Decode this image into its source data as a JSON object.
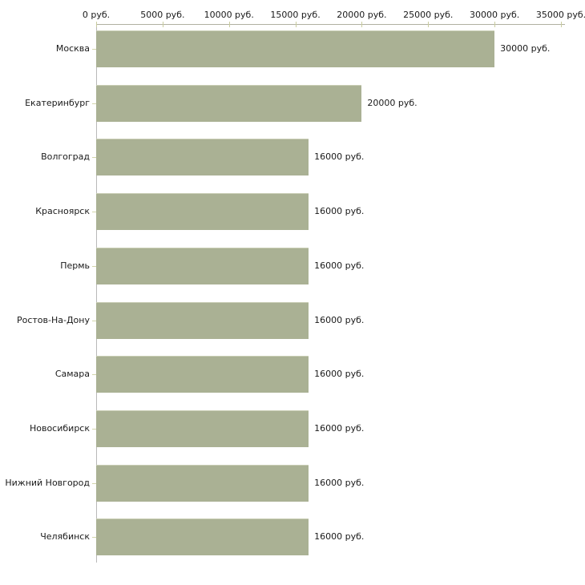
{
  "chart_data": {
    "type": "bar",
    "orientation": "horizontal",
    "title": "",
    "categories": [
      "Москва",
      "Екатеринбург",
      "Волгоград",
      "Красноярск",
      "Пермь",
      "Ростов-На-Дону",
      "Самара",
      "Новосибирск",
      "Нижний Новгород",
      "Челябинск"
    ],
    "values": [
      30000,
      20000,
      16000,
      16000,
      16000,
      16000,
      16000,
      16000,
      16000,
      16000
    ],
    "value_labels": [
      "30000 руб.",
      "20000 руб.",
      "16000 руб.",
      "16000 руб.",
      "16000 руб.",
      "16000 руб.",
      "16000 руб.",
      "16000 руб.",
      "16000 руб.",
      "16000 руб."
    ],
    "x_tick_labels": [
      "0 руб.",
      "5000 руб.",
      "10000 руб.",
      "15000 руб.",
      "20000 руб.",
      "25000 руб.",
      "30000 руб.",
      "35000 руб."
    ],
    "x_tick_values": [
      0,
      5000,
      10000,
      15000,
      20000,
      25000,
      30000,
      35000
    ],
    "xlim": [
      0,
      35000
    ],
    "xlabel": "",
    "ylabel": "",
    "grid": false,
    "legend_position": "none",
    "colors": {
      "bar": "#aab194",
      "bar_top_border": "#c9cdb4",
      "x_axis_line": "#b0b1a1",
      "x_tick_mark": "#c9cc9f",
      "y_axis_line": "#b9b9b9",
      "row_tick": "#d2d5ab",
      "text": "#1a1a1a",
      "background": "#ffffff"
    }
  }
}
